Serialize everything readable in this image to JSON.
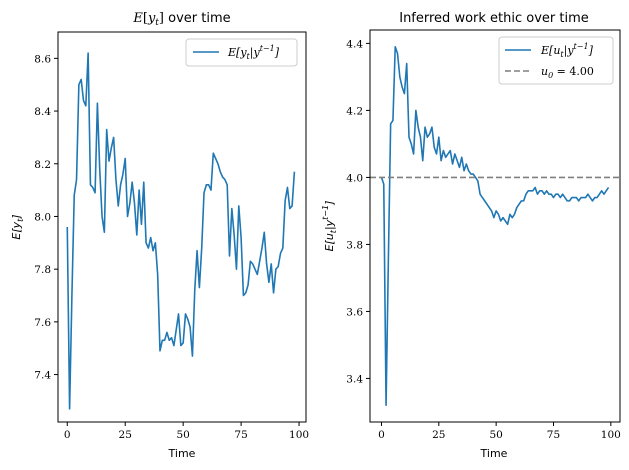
{
  "colors": {
    "series": "#1f77b4",
    "reference": "#808080"
  },
  "chart_data": [
    {
      "type": "line",
      "title": "E[y_t] over time",
      "xlabel": "Time",
      "ylabel": "E[y_t]",
      "xlim": [
        -4,
        103
      ],
      "ylim": [
        7.22,
        8.7
      ],
      "xticks": [
        0,
        25,
        50,
        75,
        100
      ],
      "yticks": [
        7.4,
        7.6,
        7.8,
        8.0,
        8.2,
        8.4,
        8.6
      ],
      "grid": false,
      "legend": "top-right",
      "series": [
        {
          "name": "E[y_t|y^{t-1}]",
          "color": "#1f77b4",
          "x": [
            0,
            1,
            2,
            3,
            4,
            5,
            6,
            7,
            8,
            9,
            10,
            11,
            12,
            13,
            14,
            15,
            16,
            17,
            18,
            19,
            20,
            21,
            22,
            23,
            24,
            25,
            26,
            27,
            28,
            29,
            30,
            31,
            32,
            33,
            34,
            35,
            36,
            37,
            38,
            39,
            40,
            41,
            42,
            43,
            44,
            45,
            46,
            47,
            48,
            49,
            50,
            51,
            52,
            53,
            54,
            55,
            56,
            57,
            58,
            59,
            60,
            61,
            62,
            63,
            64,
            65,
            66,
            67,
            68,
            69,
            70,
            71,
            72,
            73,
            74,
            75,
            76,
            77,
            78,
            79,
            80,
            81,
            82,
            83,
            84,
            85,
            86,
            87,
            88,
            89,
            90,
            91,
            92,
            93,
            94,
            95,
            96,
            97,
            98
          ],
          "y": [
            7.96,
            7.27,
            7.7,
            8.08,
            8.14,
            8.5,
            8.52,
            8.44,
            8.42,
            8.62,
            8.12,
            8.11,
            8.09,
            8.43,
            8.18,
            8.0,
            7.94,
            8.33,
            8.21,
            8.26,
            8.3,
            8.14,
            8.04,
            8.12,
            8.16,
            8.22,
            8.0,
            8.05,
            8.13,
            8.05,
            7.93,
            8.1,
            7.97,
            8.13,
            7.9,
            7.88,
            7.92,
            7.87,
            7.9,
            7.78,
            7.49,
            7.53,
            7.53,
            7.56,
            7.53,
            7.54,
            7.51,
            7.57,
            7.63,
            7.51,
            7.52,
            7.63,
            7.61,
            7.58,
            7.47,
            7.72,
            7.87,
            7.73,
            7.88,
            8.09,
            8.12,
            8.12,
            8.1,
            8.24,
            8.22,
            8.2,
            8.17,
            8.15,
            8.14,
            8.12,
            7.85,
            8.03,
            7.93,
            7.8,
            8.04,
            7.92,
            7.7,
            7.71,
            7.74,
            7.83,
            7.82,
            7.8,
            7.78,
            7.83,
            7.88,
            7.94,
            7.82,
            7.75,
            7.82,
            7.71,
            7.8,
            7.81,
            7.86,
            7.88,
            8.06,
            8.11,
            8.03,
            8.04,
            8.17
          ]
        }
      ]
    },
    {
      "type": "line",
      "title": "Inferred work ethic over time",
      "xlabel": "Time",
      "ylabel": "E[u_t|y^{t-1}]",
      "xlim": [
        -5,
        104
      ],
      "ylim": [
        3.27,
        4.44
      ],
      "xticks": [
        0,
        25,
        50,
        75,
        100
      ],
      "yticks": [
        3.4,
        3.6,
        3.8,
        4.0,
        4.2,
        4.4
      ],
      "grid": false,
      "legend": "top-right",
      "series": [
        {
          "name": "E[u_t|y^{t-1}]",
          "color": "#1f77b4",
          "x": [
            0,
            1,
            2,
            3,
            4,
            5,
            6,
            7,
            8,
            9,
            10,
            11,
            12,
            13,
            14,
            15,
            16,
            17,
            18,
            19,
            20,
            21,
            22,
            23,
            24,
            25,
            26,
            27,
            28,
            29,
            30,
            31,
            32,
            33,
            34,
            35,
            36,
            37,
            38,
            39,
            40,
            41,
            42,
            43,
            44,
            45,
            46,
            47,
            48,
            49,
            50,
            51,
            52,
            53,
            54,
            55,
            56,
            57,
            58,
            59,
            60,
            61,
            62,
            63,
            64,
            65,
            66,
            67,
            68,
            69,
            70,
            71,
            72,
            73,
            74,
            75,
            76,
            77,
            78,
            79,
            80,
            81,
            82,
            83,
            84,
            85,
            86,
            87,
            88,
            89,
            90,
            91,
            92,
            93,
            94,
            95,
            96,
            97,
            98,
            99
          ],
          "y": [
            4.0,
            3.98,
            3.32,
            3.75,
            4.16,
            4.17,
            4.39,
            4.37,
            4.3,
            4.27,
            4.25,
            4.34,
            4.12,
            4.1,
            4.07,
            4.2,
            4.15,
            4.12,
            4.05,
            4.15,
            4.12,
            4.13,
            4.15,
            4.09,
            4.07,
            4.12,
            4.05,
            4.08,
            4.06,
            4.07,
            4.08,
            4.04,
            4.07,
            4.05,
            4.03,
            4.06,
            4.02,
            4.04,
            4.02,
            4.01,
            4.01,
            4.0,
            3.99,
            3.95,
            3.94,
            3.93,
            3.92,
            3.91,
            3.9,
            3.88,
            3.9,
            3.89,
            3.87,
            3.88,
            3.87,
            3.86,
            3.89,
            3.88,
            3.89,
            3.91,
            3.92,
            3.93,
            3.93,
            3.95,
            3.96,
            3.96,
            3.96,
            3.97,
            3.95,
            3.96,
            3.96,
            3.95,
            3.96,
            3.95,
            3.95,
            3.94,
            3.95,
            3.95,
            3.94,
            3.95,
            3.94,
            3.93,
            3.93,
            3.94,
            3.94,
            3.94,
            3.93,
            3.94,
            3.94,
            3.94,
            3.95,
            3.94,
            3.93,
            3.94,
            3.94,
            3.95,
            3.96,
            3.95,
            3.96,
            3.97
          ]
        },
        {
          "name": "u_0 = 4.00",
          "color": "#808080",
          "style": "dashed",
          "x": [
            -5,
            104
          ],
          "y": [
            4.0,
            4.0
          ]
        }
      ]
    }
  ]
}
